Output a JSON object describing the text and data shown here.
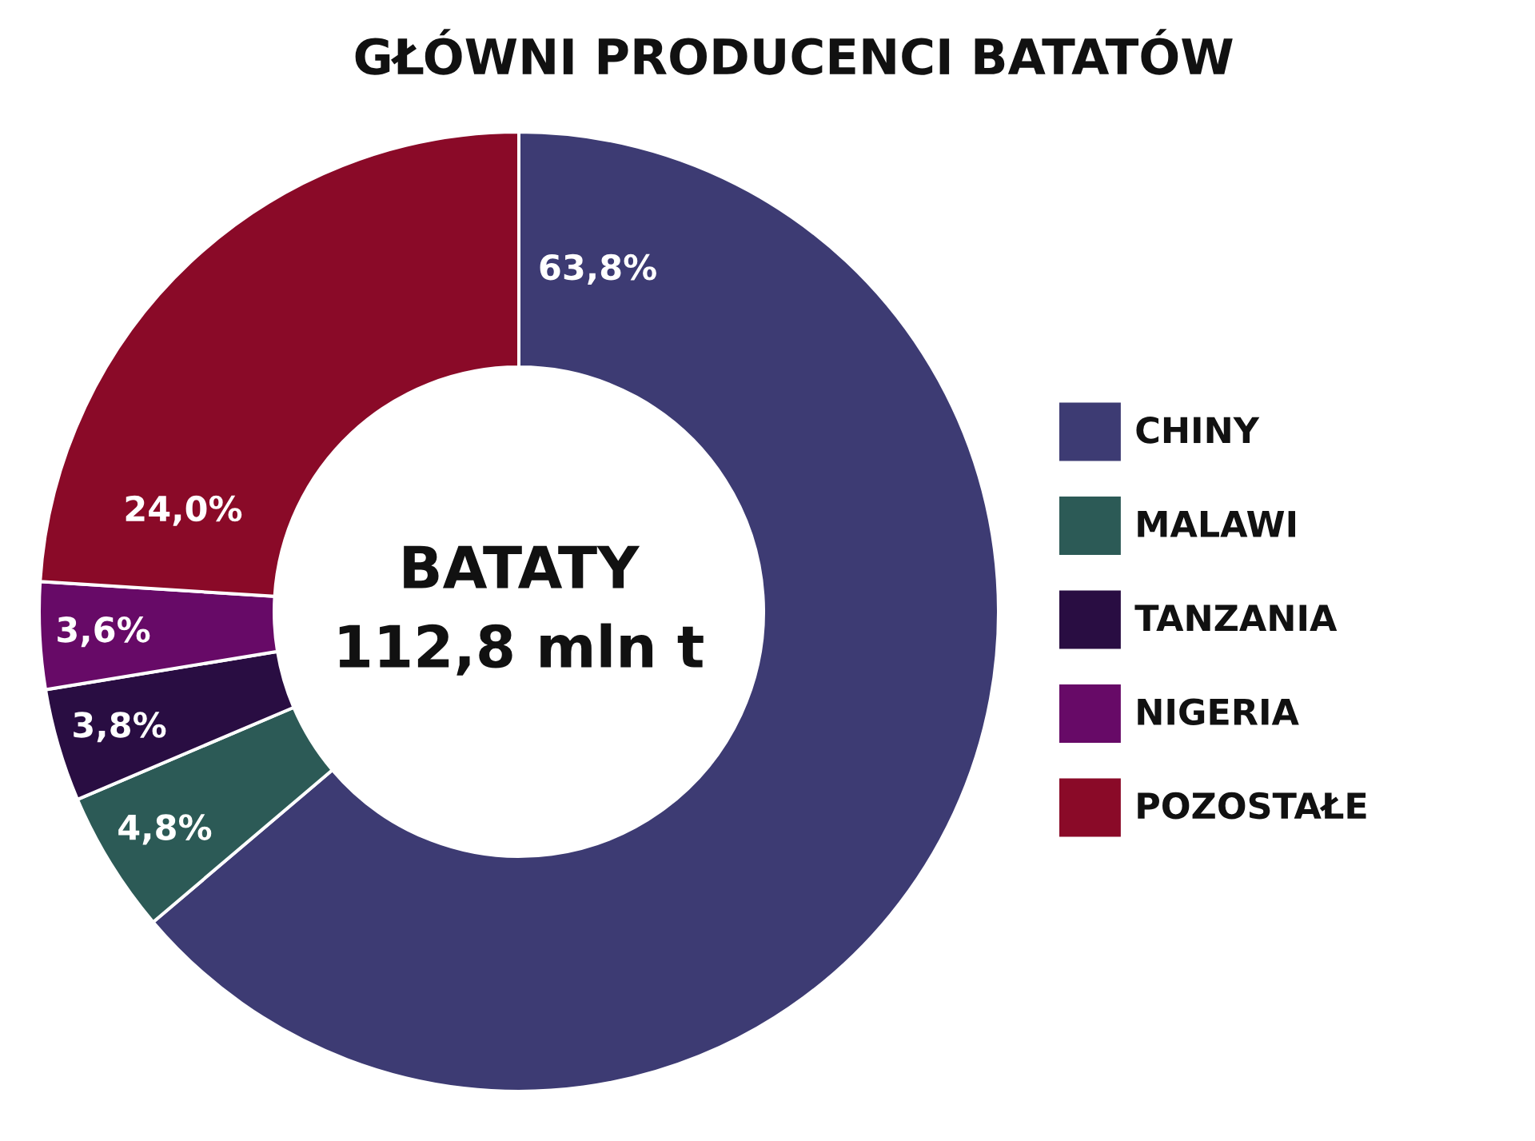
{
  "chart_data": {
    "type": "donut",
    "title": "GŁÓWNI PRODUCENCI BATATÓW",
    "categories": [
      "CHINY",
      "MALAWI",
      "TANZANIA",
      "NIGERIA",
      "POZOSTAŁE"
    ],
    "values": [
      63.8,
      4.8,
      3.8,
      3.6,
      24.0
    ],
    "colors": [
      "#3d3b73",
      "#2c5a56",
      "#290d42",
      "#670a67",
      "#8a0a28"
    ],
    "value_labels": [
      "63,8%",
      "4,8%",
      "3,8%",
      "3,6%",
      "24,0%"
    ],
    "annotations": [
      "BATATY",
      "112,8 mln t"
    ],
    "legend": "right"
  }
}
